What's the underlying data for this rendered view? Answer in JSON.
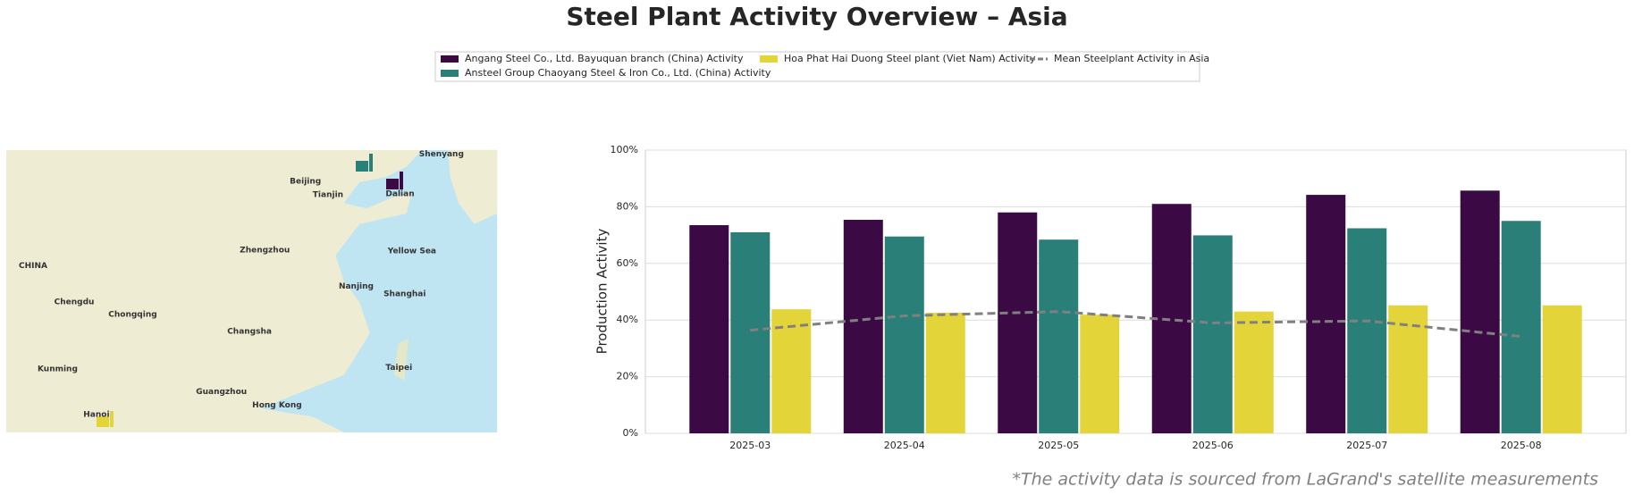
{
  "chart_data": {
    "type": "bar",
    "title": "Steel Plant Activity Overview – Asia",
    "ylabel": "Production Activity",
    "note": "*The activity data is sourced from LaGrand's satellite measurements",
    "categories": [
      "2025-03",
      "2025-04",
      "2025-05",
      "2025-06",
      "2025-07",
      "2025-08"
    ],
    "series": [
      {
        "name": "Angang Steel Co., Ltd. Bayuquan branch (China) Activity",
        "color": "#3b0a45",
        "values": [
          73.5,
          75.4,
          78.0,
          81.0,
          84.2,
          85.7
        ]
      },
      {
        "name": "Ansteel Group Chaoyang Steel & Iron Co., Ltd. (China) Activity",
        "color": "#2a8078",
        "values": [
          71.0,
          69.5,
          68.4,
          69.9,
          72.4,
          75.0
        ]
      },
      {
        "name": "Hoa Phat Hai Duong Steel plant (Viet Nam) Activity",
        "color": "#e3d43a",
        "values": [
          43.8,
          42.6,
          41.9,
          43.0,
          45.2,
          45.2
        ]
      },
      {
        "name": "Mean Steelplant Activity in Asia",
        "type": "line",
        "color": "#808080",
        "values": [
          36.4,
          41.5,
          43.0,
          39.0,
          39.7,
          34.2
        ]
      }
    ],
    "ylim": [
      0,
      100
    ],
    "yticks": [
      {
        "value": 0,
        "label": "0%"
      },
      {
        "value": 20,
        "label": "20%"
      },
      {
        "value": 40,
        "label": "40%"
      },
      {
        "value": 60,
        "label": "60%"
      },
      {
        "value": 80,
        "label": "80%"
      },
      {
        "value": 100,
        "label": "100%"
      }
    ],
    "grid": true,
    "legend": "top",
    "map_labels": [
      "CHINA",
      "Beijing",
      "Tianjin",
      "Shenyang",
      "Dalian",
      "Shanghai",
      "Yellow Sea",
      "Hong Kong",
      "Taipei",
      "Hanoi",
      "Chengdu",
      "Chongqing",
      "Kunming",
      "Changsha",
      "Zhengzhou",
      "Nanjing",
      "Guangzhou"
    ]
  }
}
